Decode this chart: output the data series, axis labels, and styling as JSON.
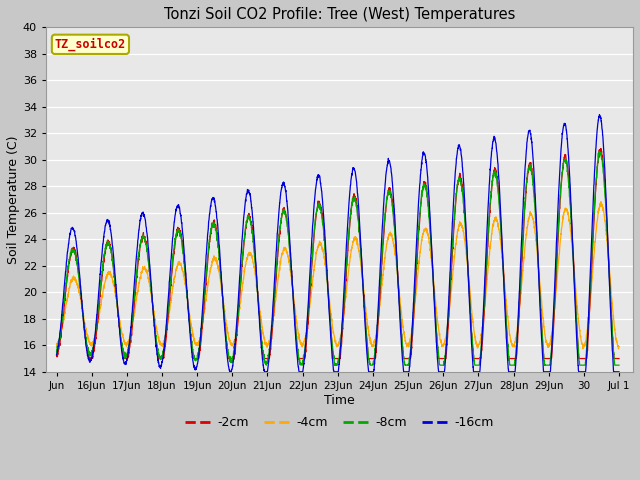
{
  "title": "Tonzi Soil CO2 Profile: Tree (West) Temperatures",
  "xlabel": "Time",
  "ylabel": "Soil Temperature (C)",
  "ylim": [
    14,
    40
  ],
  "yticks": [
    14,
    16,
    18,
    20,
    22,
    24,
    26,
    28,
    30,
    32,
    34,
    36,
    38,
    40
  ],
  "fig_bg": "#c8c8c8",
  "plot_bg": "#e8e8e8",
  "series": [
    "-2cm",
    "-4cm",
    "-8cm",
    "-16cm"
  ],
  "colors": [
    "#dd0000",
    "#ffaa00",
    "#00aa00",
    "#0000dd"
  ],
  "legend_label": "TZ_soilco2",
  "legend_label_color": "#cc0000",
  "legend_bg": "#ffffcc",
  "legend_border": "#aaaa00",
  "xtick_positions": [
    15,
    16,
    17,
    18,
    19,
    20,
    21,
    22,
    23,
    24,
    25,
    26,
    27,
    28,
    29,
    30,
    31
  ],
  "xtick_labels": [
    "Jun",
    "16Jun",
    "17Jun",
    "18Jun",
    "19Jun",
    "20Jun",
    "21Jun",
    "22Jun",
    "23Jun",
    "24Jun",
    "25Jun",
    "26Jun",
    "27Jun",
    "28Jun",
    "29Jun",
    "30",
    "Jul 1"
  ],
  "xlim": [
    14.7,
    31.4
  ]
}
